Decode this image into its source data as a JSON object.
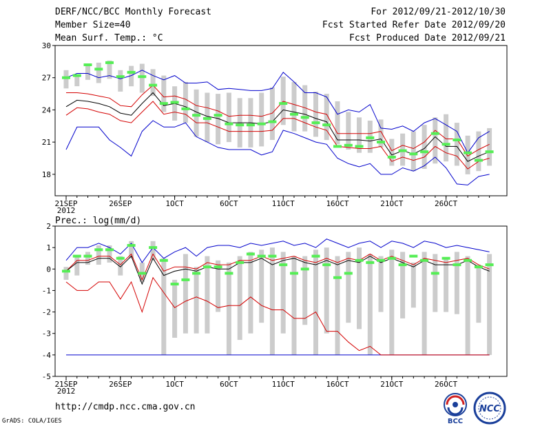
{
  "header": {
    "title": "DERF/NCC/BCC Monthly Forecast",
    "member_size": "Member Size=40",
    "variable": "Mean Surf. Temp.: °C",
    "period": "For 2012/09/21-2012/10/30",
    "refer_date": "Fcst Started Refer Date 2012/09/20",
    "produced_date": "Fcst Produced Date 2012/09/21"
  },
  "footer": {
    "url": "http://cmdp.ncc.cma.gov.cn",
    "grads": "GrADS: COLA/IGES",
    "logo_bcc": "BCC",
    "logo_ncc": "NCC"
  },
  "colors": {
    "box": "#cccccc",
    "ensemble_mean": "#000000",
    "inner_band": "#d40000",
    "outer_band": "#0000cc",
    "observed_marker": "#55ee55"
  },
  "chart_data": [
    {
      "type": "line",
      "title": "Mean Surf. Temp.: °C",
      "ylabel": "°C",
      "ylim": [
        16,
        30
      ],
      "yticks": [
        18,
        21,
        24,
        27,
        30
      ],
      "x_tick_labels": [
        {
          "day": 0,
          "label": "21SEP",
          "sub": "2012"
        },
        {
          "day": 5,
          "label": "26SEP"
        },
        {
          "day": 10,
          "label": "1OCT"
        },
        {
          "day": 15,
          "label": "6OCT"
        },
        {
          "day": 20,
          "label": "11OCT"
        },
        {
          "day": 25,
          "label": "16OCT"
        },
        {
          "day": 30,
          "label": "21OCT"
        },
        {
          "day": 35,
          "label": "26OCT"
        }
      ],
      "n_days": 40,
      "box_low": [
        26.0,
        26.2,
        26.8,
        26.5,
        26.9,
        25.7,
        26.2,
        25.6,
        25.3,
        23.8,
        23.0,
        22.8,
        21.5,
        21.0,
        20.8,
        21.0,
        20.5,
        20.5,
        20.6,
        21.2,
        22.6,
        22.0,
        22.0,
        21.5,
        21.2,
        20.8,
        20.3,
        20.0,
        20.0,
        20.5,
        18.8,
        18.8,
        18.3,
        18.5,
        19.0,
        19.2,
        18.8,
        18.0,
        18.3,
        18.8
      ],
      "box_high": [
        27.7,
        27.3,
        28.1,
        28.4,
        28.6,
        27.7,
        28.1,
        28.3,
        27.8,
        27.2,
        26.2,
        26.6,
        25.9,
        25.6,
        25.5,
        25.6,
        25.1,
        25.1,
        25.6,
        26.1,
        27.1,
        26.6,
        26.3,
        25.7,
        25.5,
        24.8,
        23.8,
        23.3,
        23.0,
        23.1,
        21.3,
        21.8,
        22.0,
        22.6,
        23.3,
        23.6,
        22.8,
        21.6,
        22.0,
        22.3
      ],
      "outer_low": [
        20.3,
        22.4,
        22.4,
        22.4,
        21.2,
        20.5,
        19.7,
        22.0,
        23.0,
        22.4,
        22.4,
        22.8,
        21.5,
        21.0,
        20.5,
        20.3,
        20.3,
        20.3,
        19.8,
        20.1,
        22.1,
        21.8,
        21.4,
        21.0,
        20.8,
        19.5,
        19.0,
        18.7,
        19.0,
        18.0,
        18.0,
        18.6,
        18.3,
        18.8,
        19.6,
        18.6,
        17.1,
        17.0,
        17.8,
        18.0
      ],
      "inner_low": [
        23.5,
        24.2,
        24.1,
        23.8,
        23.6,
        23.0,
        22.8,
        23.8,
        24.8,
        23.6,
        23.8,
        23.6,
        22.8,
        22.8,
        22.4,
        22.0,
        22.0,
        22.0,
        22.0,
        22.1,
        23.2,
        23.2,
        22.8,
        22.4,
        22.1,
        20.6,
        20.5,
        20.4,
        20.4,
        20.6,
        19.2,
        19.6,
        19.3,
        19.6,
        20.6,
        20.0,
        19.7,
        18.5,
        19.2,
        19.5
      ],
      "mean": [
        24.3,
        24.9,
        24.8,
        24.6,
        24.3,
        23.7,
        23.5,
        24.6,
        25.6,
        24.4,
        24.6,
        24.3,
        23.8,
        23.4,
        23.2,
        22.8,
        22.8,
        22.8,
        22.7,
        22.9,
        24.0,
        23.8,
        23.6,
        23.2,
        22.9,
        21.2,
        21.2,
        21.2,
        21.1,
        21.3,
        19.8,
        20.2,
        19.9,
        20.4,
        21.5,
        20.6,
        20.6,
        19.2,
        19.7,
        20.1
      ],
      "inner_high": [
        25.6,
        25.6,
        25.5,
        25.3,
        25.1,
        24.4,
        24.3,
        25.4,
        26.3,
        25.2,
        25.3,
        25.0,
        24.4,
        24.2,
        23.9,
        23.4,
        23.5,
        23.5,
        23.4,
        23.7,
        24.8,
        24.5,
        24.2,
        23.8,
        23.6,
        21.8,
        21.8,
        21.8,
        21.8,
        22.0,
        20.2,
        20.7,
        20.4,
        21.0,
        22.1,
        21.3,
        21.3,
        19.7,
        20.3,
        20.8
      ],
      "outer_high": [
        27.0,
        27.4,
        27.4,
        27.0,
        27.2,
        26.9,
        27.2,
        27.7,
        27.2,
        26.8,
        27.2,
        26.5,
        26.5,
        26.6,
        25.9,
        26.0,
        25.9,
        25.8,
        25.8,
        26.0,
        27.5,
        26.6,
        25.6,
        25.6,
        25.2,
        23.6,
        24.0,
        23.8,
        24.5,
        22.3,
        22.2,
        22.5,
        22.0,
        22.8,
        23.2,
        22.6,
        22.0,
        20.0,
        21.4,
        22.0
      ],
      "observed": [
        27.0,
        27.2,
        28.2,
        27.8,
        28.4,
        27.1,
        27.5,
        27.1,
        26.3,
        24.6,
        24.7,
        24.1,
        23.5,
        23.2,
        23.5,
        22.7,
        22.6,
        22.6,
        22.7,
        22.9,
        24.6,
        23.6,
        23.3,
        22.8,
        22.6,
        20.6,
        20.7,
        20.6,
        21.4,
        21.0,
        19.6,
        20.2,
        19.9,
        20.1,
        21.8,
        20.8,
        21.2,
        20.0,
        19.3,
        20.1
      ]
    },
    {
      "type": "line",
      "title": "Prec.: log(mm/d)",
      "ylabel": "log(mm/d)",
      "ylim": [
        -5,
        2
      ],
      "yticks": [
        -5,
        -4,
        -3,
        -2,
        -1,
        0,
        1,
        2
      ],
      "x_tick_labels": [
        {
          "day": 0,
          "label": "21SEP",
          "sub": "2012"
        },
        {
          "day": 5,
          "label": "26SEP"
        },
        {
          "day": 10,
          "label": "1OCT"
        },
        {
          "day": 15,
          "label": "6OCT"
        },
        {
          "day": 20,
          "label": "11OCT"
        },
        {
          "day": 25,
          "label": "16OCT"
        },
        {
          "day": 30,
          "label": "21OCT"
        },
        {
          "day": 35,
          "label": "26OCT"
        }
      ],
      "n_days": 40,
      "box_low": [
        -0.5,
        -0.3,
        0.2,
        0.2,
        0.3,
        -0.3,
        0.5,
        -0.6,
        0.4,
        -4.0,
        -3.2,
        -3.0,
        -3.0,
        -3.0,
        -2.0,
        -4.0,
        -3.3,
        -3.0,
        -2.5,
        -4.0,
        -3.0,
        -4.0,
        -2.6,
        -4.0,
        -3.0,
        -4.0,
        -2.5,
        -2.8,
        -4.0,
        -2.0,
        -4.0,
        -2.3,
        -1.8,
        -4.0,
        -2.0,
        -2.0,
        -2.1,
        -4.0,
        -2.5,
        -4.0
      ],
      "box_high": [
        0.1,
        0.6,
        0.8,
        1.1,
        1.1,
        0.6,
        1.3,
        0.3,
        1.3,
        0.5,
        -0.5,
        0.7,
        0.1,
        0.6,
        0.4,
        0.3,
        0.6,
        0.8,
        0.9,
        1.0,
        0.8,
        0.6,
        0.6,
        0.9,
        1.0,
        0.6,
        0.8,
        1.0,
        0.7,
        0.6,
        0.9,
        0.8,
        0.3,
        0.8,
        0.7,
        0.5,
        0.8,
        0.6,
        0.2,
        0.7
      ],
      "outer_low": [
        -4,
        -4,
        -4,
        -4,
        -4,
        -4,
        -4,
        -4,
        -4,
        -4,
        -4,
        -4,
        -4,
        -4,
        -4,
        -4,
        -4,
        -4,
        -4,
        -4,
        -4,
        -4,
        -4,
        -4,
        -4,
        -4,
        -4,
        -4,
        -4,
        -4,
        -4,
        -4,
        -4,
        -4,
        -4,
        -4,
        -4,
        -4,
        -4,
        -4
      ],
      "inner_low": [
        -0.6,
        -1.0,
        -1.0,
        -0.6,
        -0.6,
        -1.4,
        -0.6,
        -2.0,
        -0.4,
        -1.1,
        -1.8,
        -1.5,
        -1.3,
        -1.5,
        -1.8,
        -1.7,
        -1.7,
        -1.3,
        -1.7,
        -1.9,
        -1.9,
        -2.3,
        -2.3,
        -2.0,
        -2.9,
        -2.9,
        -3.4,
        -3.8,
        -3.6,
        -4.0,
        -4.0,
        -4.0,
        -4.0,
        -4.0,
        -4.0,
        -4.0,
        -4.0,
        -4.0,
        -4.0,
        -4.0
      ],
      "mean": [
        -0.1,
        0.3,
        0.3,
        0.5,
        0.5,
        0.1,
        0.6,
        -0.7,
        0.5,
        -0.3,
        -0.1,
        0.0,
        -0.1,
        0.1,
        0.0,
        0.0,
        0.3,
        0.3,
        0.5,
        0.2,
        0.4,
        0.5,
        0.3,
        0.2,
        0.4,
        0.2,
        0.4,
        0.3,
        0.6,
        0.3,
        0.5,
        0.3,
        0.1,
        0.4,
        0.2,
        0.2,
        0.2,
        0.4,
        0.1,
        -0.1
      ],
      "inner_high": [
        -0.1,
        0.4,
        0.4,
        0.6,
        0.6,
        0.2,
        0.7,
        -0.5,
        0.7,
        -0.1,
        0.1,
        0.1,
        0.0,
        0.3,
        0.2,
        0.2,
        0.4,
        0.4,
        0.6,
        0.4,
        0.5,
        0.6,
        0.4,
        0.3,
        0.5,
        0.3,
        0.5,
        0.4,
        0.7,
        0.4,
        0.6,
        0.4,
        0.2,
        0.5,
        0.4,
        0.3,
        0.4,
        0.5,
        0.2,
        0.0
      ],
      "outer_high": [
        0.4,
        1.0,
        1.0,
        1.2,
        1.0,
        0.7,
        1.2,
        0.3,
        1.0,
        0.5,
        0.8,
        1.0,
        0.6,
        1.0,
        1.1,
        1.1,
        1.0,
        1.2,
        1.1,
        1.2,
        1.3,
        1.1,
        1.2,
        1.0,
        1.4,
        1.2,
        1.0,
        1.2,
        1.3,
        1.0,
        1.3,
        1.2,
        1.0,
        1.3,
        1.2,
        1.0,
        1.1,
        1.0,
        0.9,
        0.8
      ],
      "observed": [
        -0.1,
        0.6,
        0.6,
        0.9,
        0.9,
        0.5,
        1.1,
        -0.2,
        1.0,
        0.4,
        -0.7,
        -0.5,
        -0.2,
        0.1,
        0.1,
        -0.2,
        0.3,
        0.7,
        0.6,
        0.6,
        0.2,
        -0.2,
        0.0,
        0.6,
        0.2,
        -0.4,
        -0.2,
        0.4,
        0.3,
        0.4,
        0.5,
        0.2,
        0.6,
        0.4,
        -0.2,
        0.5,
        0.2,
        0.4,
        0.1,
        0.2
      ]
    }
  ]
}
